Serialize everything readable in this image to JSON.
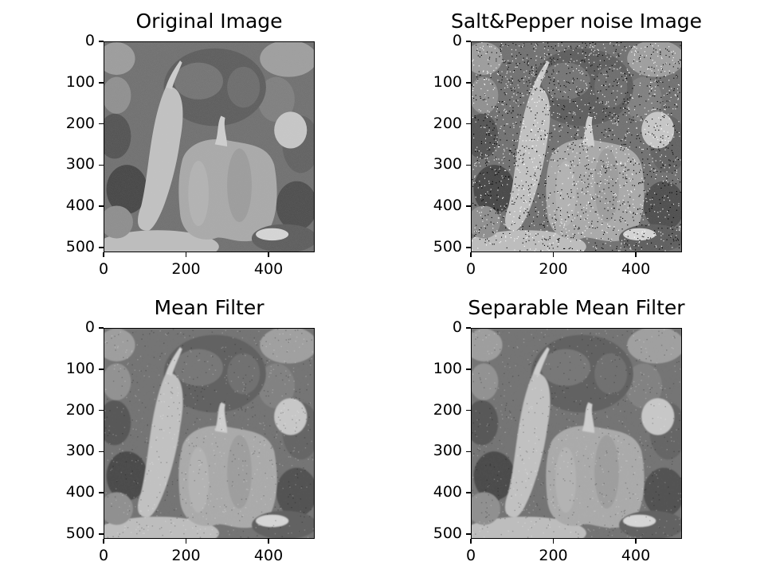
{
  "figure": {
    "panels": [
      {
        "id": "original",
        "title": "Original Image",
        "image": "grayscale peppers photo",
        "noise": "none",
        "xticks": [
          "0",
          "200",
          "400"
        ],
        "yticks": [
          "0",
          "100",
          "200",
          "300",
          "400",
          "500"
        ]
      },
      {
        "id": "noisy",
        "title": "Salt&Pepper noise Image",
        "image": "grayscale peppers photo",
        "noise": "salt-and-pepper",
        "xticks": [
          "0",
          "200",
          "400"
        ],
        "yticks": [
          "0",
          "100",
          "200",
          "300",
          "400",
          "500"
        ]
      },
      {
        "id": "mean",
        "title": "Mean Filter",
        "image": "grayscale peppers photo",
        "noise": "smoothed",
        "xticks": [
          "0",
          "200",
          "400"
        ],
        "yticks": [
          "0",
          "100",
          "200",
          "300",
          "400",
          "500"
        ]
      },
      {
        "id": "separable",
        "title": "Separable Mean Filter",
        "image": "grayscale peppers photo",
        "noise": "smoothed",
        "xticks": [
          "0",
          "200",
          "400"
        ],
        "yticks": [
          "0",
          "100",
          "200",
          "300",
          "400",
          "500"
        ]
      }
    ],
    "axis_extent": [
      0,
      512
    ],
    "colormap": "gray"
  }
}
